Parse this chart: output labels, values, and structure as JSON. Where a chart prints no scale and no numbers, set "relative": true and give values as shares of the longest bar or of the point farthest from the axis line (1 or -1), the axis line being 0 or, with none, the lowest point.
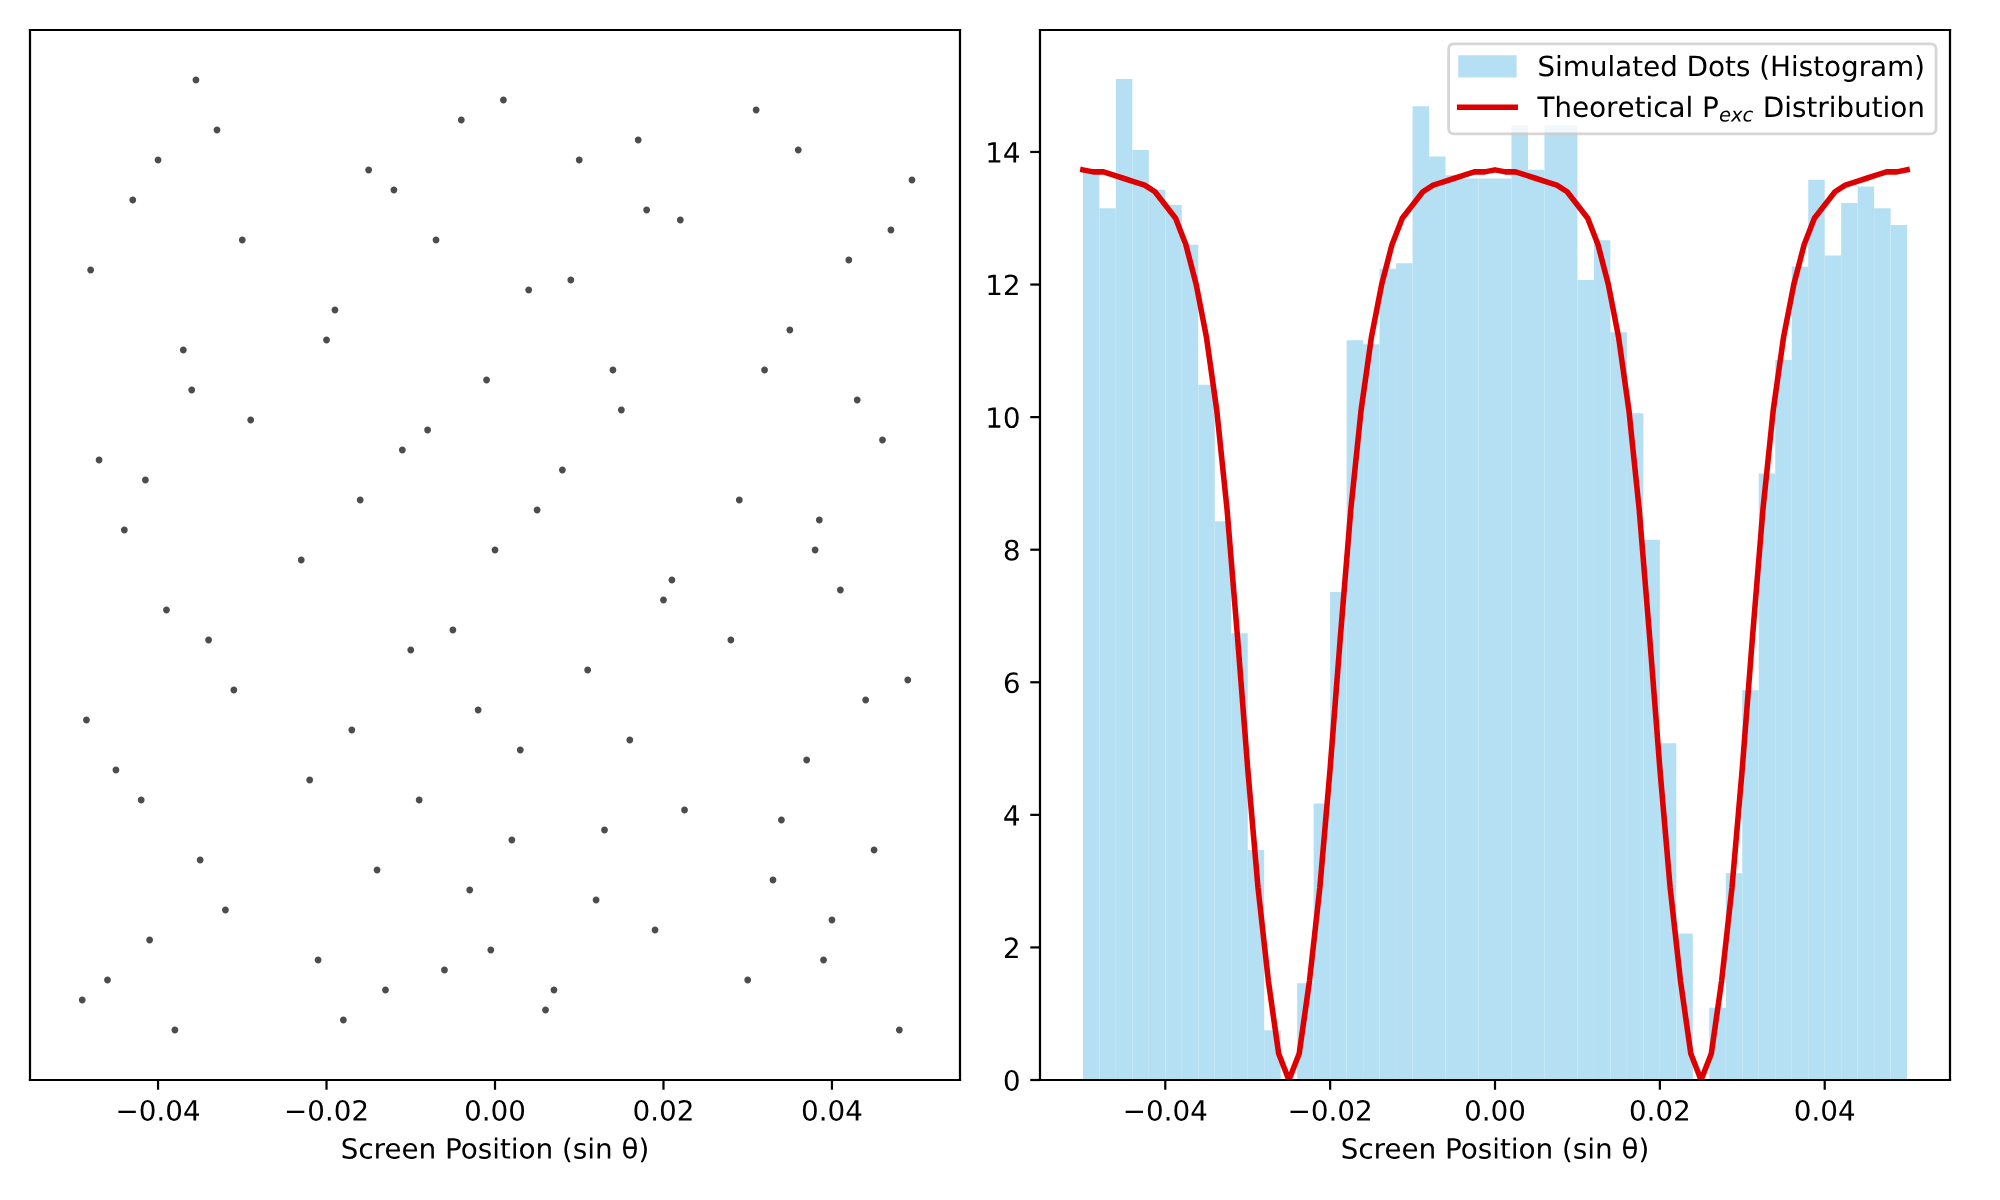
{
  "chart_data": [
    {
      "type": "scatter",
      "xlabel": "Screen Position (sin θ)",
      "relative": true,
      "tick_labels": "x",
      "grid": false,
      "legend": false,
      "marker": "circle",
      "xlim": [
        -0.0552,
        0.0552
      ],
      "xticks": [
        {
          "value": -0.04,
          "label": "−0.04"
        },
        {
          "value": -0.02,
          "label": "−0.02"
        },
        {
          "value": 0,
          "label": "0.00"
        },
        {
          "value": 0.02,
          "label": "0.02"
        },
        {
          "value": 0.04,
          "label": "0.04"
        }
      ],
      "series": [
        {
          "color": "#000000",
          "x": [
            -0.049,
            -0.047,
            -0.045,
            -0.043,
            -0.041,
            -0.039,
            -0.037,
            -0.035,
            -0.033,
            -0.031,
            -0.029,
            -0.048,
            -0.046,
            -0.044,
            -0.042,
            -0.04,
            -0.038,
            -0.036,
            -0.034,
            -0.032,
            -0.03,
            -0.0485,
            -0.0415,
            -0.0355,
            -0.023,
            -0.021,
            -0.019,
            -0.017,
            -0.015,
            -0.013,
            -0.011,
            -0.009,
            -0.007,
            -0.005,
            -0.003,
            -0.001,
            0.001,
            0.003,
            0.005,
            0.007,
            0.009,
            0.011,
            0.013,
            0.015,
            0.017,
            0.019,
            0.021,
            0.022,
            -0.022,
            -0.02,
            -0.018,
            -0.016,
            -0.014,
            -0.012,
            -0.01,
            -0.008,
            -0.006,
            -0.004,
            -0.002,
            0.0,
            0.002,
            0.004,
            0.006,
            0.008,
            0.01,
            0.012,
            0.014,
            0.016,
            0.018,
            0.02,
            0.0225,
            -0.0005,
            0.028,
            0.03,
            0.032,
            0.034,
            0.036,
            0.038,
            0.04,
            0.042,
            0.044,
            0.046,
            0.048,
            0.0495,
            0.029,
            0.031,
            0.033,
            0.035,
            0.037,
            0.039,
            0.041,
            0.043,
            0.045,
            0.047,
            0.049,
            0.0385
          ],
          "values": [
            0.08,
            0.62,
            0.31,
            0.88,
            0.14,
            0.47,
            0.73,
            0.22,
            0.95,
            0.39,
            0.66,
            0.81,
            0.1,
            0.55,
            0.28,
            0.92,
            0.05,
            0.69,
            0.44,
            0.17,
            0.84,
            0.36,
            0.6,
            1,
            0.52,
            0.12,
            0.77,
            0.35,
            0.91,
            0.09,
            0.63,
            0.28,
            0.84,
            0.45,
            0.19,
            0.7,
            0.98,
            0.33,
            0.57,
            0.09,
            0.8,
            0.41,
            0.25,
            0.67,
            0.94,
            0.15,
            0.5,
            0.86,
            0.3,
            0.74,
            0.06,
            0.58,
            0.21,
            0.89,
            0.43,
            0.65,
            0.11,
            0.96,
            0.37,
            0.53,
            0.24,
            0.79,
            0.07,
            0.61,
            0.92,
            0.18,
            0.71,
            0.34,
            0.87,
            0.48,
            0.27,
            0.13,
            0.44,
            0.1,
            0.71,
            0.26,
            0.93,
            0.53,
            0.16,
            0.82,
            0.38,
            0.64,
            0.05,
            0.9,
            0.58,
            0.97,
            0.2,
            0.75,
            0.32,
            0.12,
            0.49,
            0.68,
            0.23,
            0.85,
            0.4,
            0.56
          ]
        }
      ]
    },
    {
      "type": "histogram",
      "xlabel": "Screen Position (sin θ)",
      "grid": false,
      "legend": "top right",
      "xlim": [
        -0.0552,
        0.0552
      ],
      "xticks": [
        {
          "value": -0.04,
          "label": "−0.04"
        },
        {
          "value": -0.02,
          "label": "−0.02"
        },
        {
          "value": 0,
          "label": "0.00"
        },
        {
          "value": 0.02,
          "label": "0.02"
        },
        {
          "value": 0.04,
          "label": "0.04"
        }
      ],
      "ylim": [
        0,
        15.84
      ],
      "yticks": [
        0,
        2,
        4,
        6,
        8,
        10,
        12,
        14
      ],
      "series": [
        {
          "type": "histogram",
          "name": "Simulated Dots (Histogram)",
          "color": "#b5dff2",
          "bins": [
            -0.05,
            -0.048,
            -0.046,
            -0.044,
            -0.042,
            -0.04,
            -0.038,
            -0.036,
            -0.034,
            -0.032,
            -0.03,
            -0.028,
            -0.026,
            -0.024,
            -0.022,
            -0.02,
            -0.018,
            -0.016,
            -0.014,
            -0.012,
            -0.01,
            -0.008,
            -0.006,
            -0.004,
            -0.002,
            0,
            0.002,
            0.004,
            0.006,
            0.008,
            0.01,
            0.012,
            0.014,
            0.016,
            0.018,
            0.02,
            0.022,
            0.024,
            0.026,
            0.028,
            0.03,
            0.032,
            0.034,
            0.036,
            0.038,
            0.04,
            0.042,
            0.044,
            0.046,
            0.048,
            0.05
          ],
          "values": [
            13.73,
            13.15,
            15.1,
            14.03,
            13.43,
            13.2,
            12.6,
            10.49,
            8.43,
            6.74,
            3.47,
            0.75,
            0,
            1.46,
            4.17,
            7.36,
            11.16,
            11.1,
            12.24,
            12.32,
            14.69,
            13.93,
            13.65,
            13.6,
            13.6,
            13.6,
            14.4,
            13.73,
            14.4,
            14.4,
            12.07,
            12.67,
            11.28,
            10.06,
            8.15,
            5.08,
            2.21,
            0,
            1.09,
            3.12,
            5.88,
            9.15,
            10.86,
            12.27,
            13.58,
            12.44,
            13.23,
            13.48,
            13.15,
            12.9
          ]
        },
        {
          "type": "line",
          "name": "Theoretical P$_{exc}$ Distribution",
          "color": "#dd0000",
          "line_style": "solid",
          "x": [
            -0.05,
            -0.04875,
            -0.0475,
            -0.04625,
            -0.045,
            -0.04375,
            -0.0425,
            -0.04125,
            -0.04,
            -0.03875,
            -0.0375,
            -0.03625,
            -0.035,
            -0.03375,
            -0.0325,
            -0.03125,
            -0.03,
            -0.02875,
            -0.0275,
            -0.02625,
            -0.025,
            -0.02375,
            -0.0225,
            -0.02125,
            -0.02,
            -0.01875,
            -0.0175,
            -0.01625,
            -0.015,
            -0.01375,
            -0.0125,
            -0.01125,
            -0.01,
            -0.00875,
            -0.0075,
            -0.00625,
            -0.005,
            -0.00375,
            -0.0025,
            -0.00125,
            0,
            0.00125,
            0.0025,
            0.00375,
            0.005,
            0.00625,
            0.0075,
            0.00875,
            0.01,
            0.01125,
            0.0125,
            0.01375,
            0.015,
            0.01625,
            0.0175,
            0.01875,
            0.02,
            0.02125,
            0.0225,
            0.02375,
            0.025,
            0.02625,
            0.0275,
            0.02875,
            0.03,
            0.03125,
            0.0325,
            0.03375,
            0.035,
            0.03625,
            0.0375,
            0.03875,
            0.04,
            0.04125,
            0.0425,
            0.04375,
            0.045,
            0.04625,
            0.0475,
            0.04875,
            0.05
          ],
          "values": [
            13.73,
            13.7,
            13.7,
            13.65,
            13.6,
            13.55,
            13.5,
            13.4,
            13.2,
            13.0,
            12.6,
            12.0,
            11.2,
            10.1,
            8.6,
            6.7,
            4.7,
            2.9,
            1.5,
            0.4,
            0,
            0.4,
            1.5,
            2.9,
            4.7,
            6.7,
            8.6,
            10.1,
            11.2,
            12.0,
            12.6,
            13.0,
            13.2,
            13.4,
            13.5,
            13.55,
            13.6,
            13.65,
            13.7,
            13.7,
            13.73,
            13.7,
            13.7,
            13.65,
            13.6,
            13.55,
            13.5,
            13.4,
            13.2,
            13.0,
            12.6,
            12.0,
            11.2,
            10.1,
            8.6,
            6.7,
            4.7,
            2.9,
            1.5,
            0.4,
            0,
            0.4,
            1.5,
            2.9,
            4.7,
            6.7,
            8.6,
            10.1,
            11.2,
            12.0,
            12.6,
            13.0,
            13.2,
            13.4,
            13.5,
            13.55,
            13.6,
            13.65,
            13.7,
            13.7,
            13.73
          ]
        }
      ]
    }
  ]
}
